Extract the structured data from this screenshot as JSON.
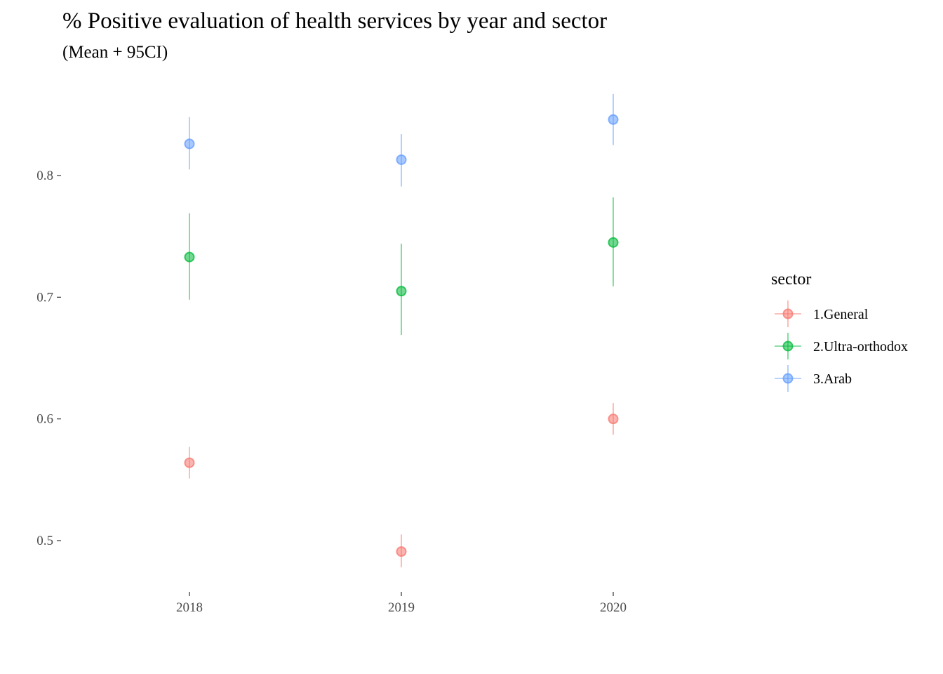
{
  "chart_data": {
    "type": "scatter",
    "title": "% Positive evaluation of health services by year and sector",
    "subtitle": "(Mean + 95CI)",
    "xlabel": "",
    "ylabel": "",
    "categories": [
      "2018",
      "2019",
      "2020"
    ],
    "y_ticks": [
      0.5,
      0.6,
      0.7,
      0.8
    ],
    "y_tick_labels": [
      "0.5",
      "0.6",
      "0.7",
      "0.8"
    ],
    "ylim": [
      0.445,
      0.885
    ],
    "grid": false,
    "legend": {
      "title": "sector",
      "position": "right"
    },
    "series": [
      {
        "name": "1.General",
        "color": "#F8766D",
        "values": [
          0.564,
          0.491,
          0.6
        ],
        "ci_low": [
          0.551,
          0.478,
          0.587
        ],
        "ci_high": [
          0.577,
          0.505,
          0.613
        ]
      },
      {
        "name": "2.Ultra-orthodox",
        "color": "#00BA38",
        "values": [
          0.733,
          0.705,
          0.745
        ],
        "ci_low": [
          0.698,
          0.669,
          0.709
        ],
        "ci_high": [
          0.769,
          0.744,
          0.782
        ]
      },
      {
        "name": "3.Arab",
        "color": "#619CFF",
        "values": [
          0.826,
          0.813,
          0.846
        ],
        "ci_low": [
          0.805,
          0.791,
          0.825
        ],
        "ci_high": [
          0.848,
          0.834,
          0.867
        ]
      }
    ]
  }
}
